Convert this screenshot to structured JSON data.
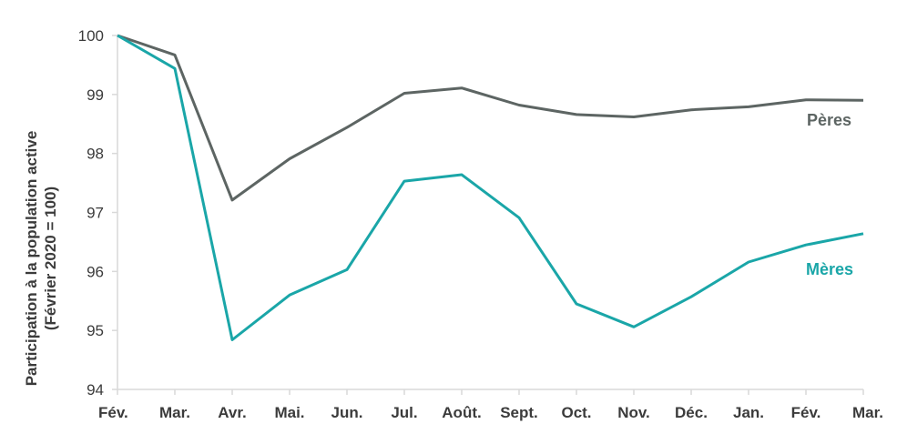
{
  "chart_data": {
    "type": "line",
    "title": "",
    "ylabel_line1": "Participation à la population active",
    "ylabel_line2": "(Février 2020 = 100)",
    "xlabel": "",
    "ylim": [
      94,
      100
    ],
    "yticks": [
      "94",
      "95",
      "96",
      "97",
      "98",
      "99",
      "100"
    ],
    "grid": false,
    "categories": [
      "Fév.",
      "Mar.",
      "Avr.",
      "Mai.",
      "Jun.",
      "Jul.",
      "Août.",
      "Sept.",
      "Oct.",
      "Nov.",
      "Déc.",
      "Jan.",
      "Fév.",
      "Mar."
    ],
    "series": [
      {
        "name": "Pères",
        "color": "#5d6563",
        "values": [
          100,
          99.67,
          97.21,
          97.91,
          98.44,
          99.02,
          99.11,
          98.82,
          98.66,
          98.62,
          98.74,
          98.79,
          98.91,
          98.9
        ]
      },
      {
        "name": "Mères",
        "color": "#1aa6a8",
        "values": [
          100,
          99.44,
          94.84,
          95.6,
          96.03,
          97.53,
          97.64,
          96.91,
          95.45,
          95.06,
          95.57,
          96.16,
          96.45,
          96.64
        ]
      }
    ]
  }
}
